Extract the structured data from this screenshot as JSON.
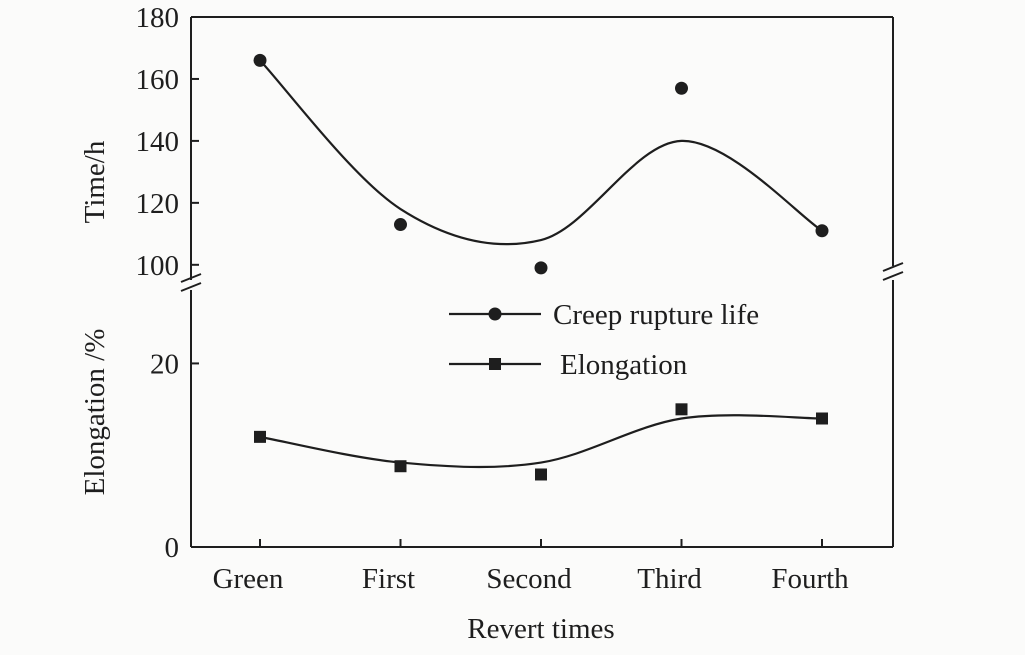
{
  "chart_data": {
    "type": "line",
    "categories": [
      "Green",
      "First",
      "Second",
      "Third",
      "Fourth"
    ],
    "xlabel": "Revert times",
    "panels": [
      {
        "ylabel": "Time/h",
        "ylim": [
          98,
          180
        ],
        "yticks": [
          100,
          120,
          140,
          160,
          180
        ],
        "series": [
          {
            "name": "Creep rupture life",
            "marker": "circle",
            "values": [
              166,
              113,
              99,
              157,
              111
            ],
            "fit_curve": [
              166,
              118,
              108,
              140,
              111
            ]
          }
        ]
      },
      {
        "ylabel": "Elongation /%",
        "ylim": [
          0,
          28
        ],
        "yticks": [
          0,
          20
        ],
        "series": [
          {
            "name": "Elongation",
            "marker": "square",
            "values": [
              12,
              8.8,
              7.9,
              15,
              14
            ],
            "fit_curve": [
              12,
              9.2,
              9.2,
              14,
              14
            ]
          }
        ]
      }
    ],
    "legend_position": "center-right",
    "grid": false,
    "axis_break": true
  },
  "colors": {
    "ink": "#1e1e1e",
    "background": "#fbfbfa"
  }
}
